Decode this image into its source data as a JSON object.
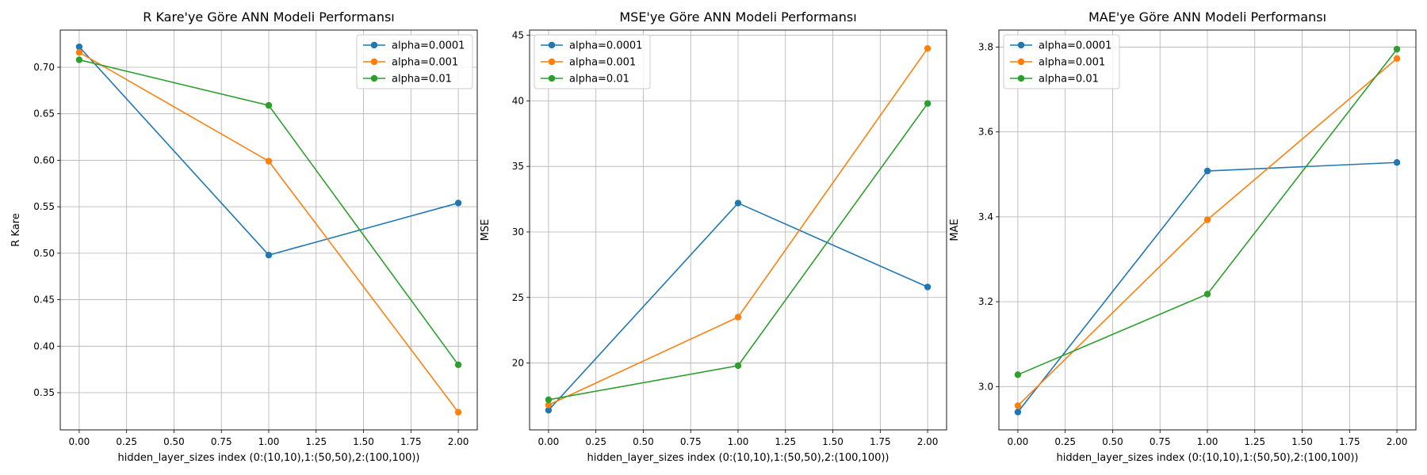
{
  "chart_data": [
    {
      "type": "line",
      "title": "R Kare'ye Göre ANN Modeli Performansı",
      "xlabel": "hidden_layer_sizes index (0:(10,10),1:(50,50),2:(100,100))",
      "ylabel": "R Kare",
      "x": [
        0,
        1,
        2
      ],
      "xlim": [
        -0.1,
        2.1
      ],
      "ylim": [
        0.31,
        0.74
      ],
      "xticks": [
        "0.00",
        "0.25",
        "0.50",
        "0.75",
        "1.00",
        "1.25",
        "1.50",
        "1.75",
        "2.00"
      ],
      "yticks": [
        "0.35",
        "0.40",
        "0.45",
        "0.50",
        "0.55",
        "0.60",
        "0.65",
        "0.70"
      ],
      "grid": true,
      "legend_position": "top-right",
      "series": [
        {
          "name": "alpha=0.0001",
          "color": "#1f77b4",
          "values": [
            0.722,
            0.498,
            0.554
          ]
        },
        {
          "name": "alpha=0.001",
          "color": "#ff7f0e",
          "values": [
            0.716,
            0.599,
            0.329
          ]
        },
        {
          "name": "alpha=0.01",
          "color": "#2ca02c",
          "values": [
            0.708,
            0.659,
            0.38
          ]
        }
      ]
    },
    {
      "type": "line",
      "title": "MSE'ye Göre ANN Modeli Performansı",
      "xlabel": "hidden_layer_sizes index (0:(10,10),1:(50,50),2:(100,100))",
      "ylabel": "MSE",
      "x": [
        0,
        1,
        2
      ],
      "xlim": [
        -0.1,
        2.1
      ],
      "ylim": [
        14.9,
        45.4
      ],
      "xticks": [
        "0.00",
        "0.25",
        "0.50",
        "0.75",
        "1.00",
        "1.25",
        "1.50",
        "1.75",
        "2.00"
      ],
      "yticks": [
        "20",
        "25",
        "30",
        "35",
        "40",
        "45"
      ],
      "grid": true,
      "legend_position": "top-left",
      "series": [
        {
          "name": "alpha=0.0001",
          "color": "#1f77b4",
          "values": [
            16.4,
            32.2,
            25.8
          ]
        },
        {
          "name": "alpha=0.001",
          "color": "#ff7f0e",
          "values": [
            16.8,
            23.5,
            44.0
          ]
        },
        {
          "name": "alpha=0.01",
          "color": "#2ca02c",
          "values": [
            17.2,
            19.8,
            39.8
          ]
        }
      ]
    },
    {
      "type": "line",
      "title": "MAE'ye Göre ANN Modeli Performansı",
      "xlabel": "hidden_layer_sizes index (0:(10,10),1:(50,50),2:(100,100))",
      "ylabel": "MAE",
      "x": [
        0,
        1,
        2
      ],
      "xlim": [
        -0.1,
        2.1
      ],
      "ylim": [
        2.898,
        3.84
      ],
      "xticks": [
        "0.00",
        "0.25",
        "0.50",
        "0.75",
        "1.00",
        "1.25",
        "1.50",
        "1.75",
        "2.00"
      ],
      "yticks": [
        "3.0",
        "3.2",
        "3.4",
        "3.6",
        "3.8"
      ],
      "grid": true,
      "legend_position": "top-left",
      "series": [
        {
          "name": "alpha=0.0001",
          "color": "#1f77b4",
          "values": [
            2.94,
            3.508,
            3.528
          ]
        },
        {
          "name": "alpha=0.001",
          "color": "#ff7f0e",
          "values": [
            2.955,
            3.393,
            3.773
          ]
        },
        {
          "name": "alpha=0.01",
          "color": "#2ca02c",
          "values": [
            3.028,
            3.218,
            3.795
          ]
        }
      ]
    }
  ]
}
